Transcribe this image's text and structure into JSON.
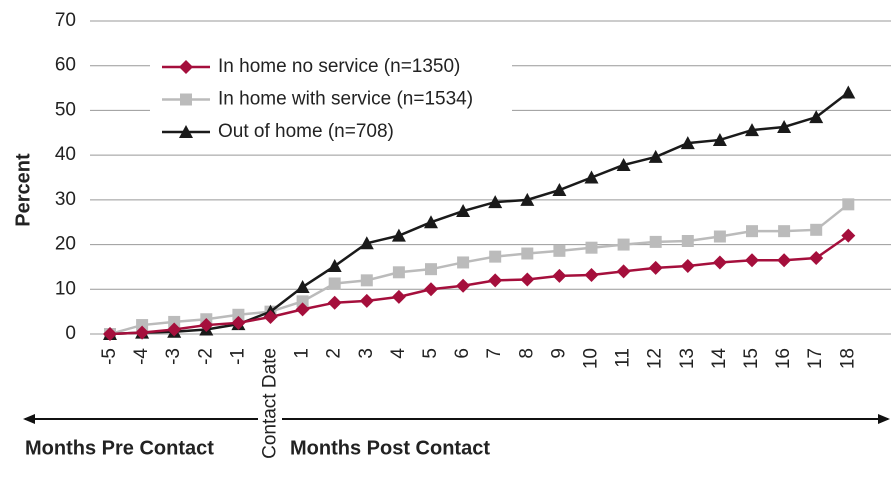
{
  "chart_data": {
    "type": "line",
    "y_label": "Percent",
    "categories": [
      "-5",
      "-4",
      "-3",
      "-2",
      "-1",
      "Contact Date",
      "1",
      "2",
      "3",
      "4",
      "5",
      "6",
      "7",
      "8",
      "9",
      "10",
      "11",
      "12",
      "13",
      "14",
      "15",
      "16",
      "17",
      "18"
    ],
    "series": [
      {
        "name": "In home no service (n=1350)",
        "color": "#a50f3c",
        "marker": "diamond",
        "values": [
          0,
          0.3,
          1,
          2,
          2.5,
          3.8,
          5.5,
          7,
          7.4,
          8.3,
          10,
          10.8,
          12,
          12.2,
          13,
          13.2,
          14,
          14.8,
          15.2,
          16,
          16.5,
          16.5,
          17,
          22
        ]
      },
      {
        "name": "In home with service (n=1534)",
        "color": "#bbbbbb",
        "marker": "square",
        "values": [
          0,
          2,
          2.7,
          3.3,
          4.3,
          5,
          7.3,
          11.3,
          12,
          13.8,
          14.5,
          16,
          17.3,
          18,
          18.6,
          19.3,
          20,
          20.6,
          20.8,
          21.8,
          23,
          23,
          23.3,
          29
        ]
      },
      {
        "name": "Out of home (n=708)",
        "color": "#1a1a1a",
        "marker": "triangle",
        "values": [
          0,
          0.3,
          0.5,
          1,
          2.2,
          5,
          10.5,
          15.2,
          20.3,
          22,
          25,
          27.5,
          29.5,
          30,
          32.2,
          35,
          37.8,
          39.6,
          42.7,
          43.4,
          45.6,
          46.3,
          48.5,
          54
        ]
      }
    ],
    "ylim": [
      0,
      70
    ],
    "yticks": [
      0,
      10,
      20,
      30,
      40,
      50,
      60,
      70
    ],
    "grid": true,
    "legend": "top-left",
    "annotations": [
      "Months Pre Contact",
      "Months Post Contact"
    ]
  }
}
